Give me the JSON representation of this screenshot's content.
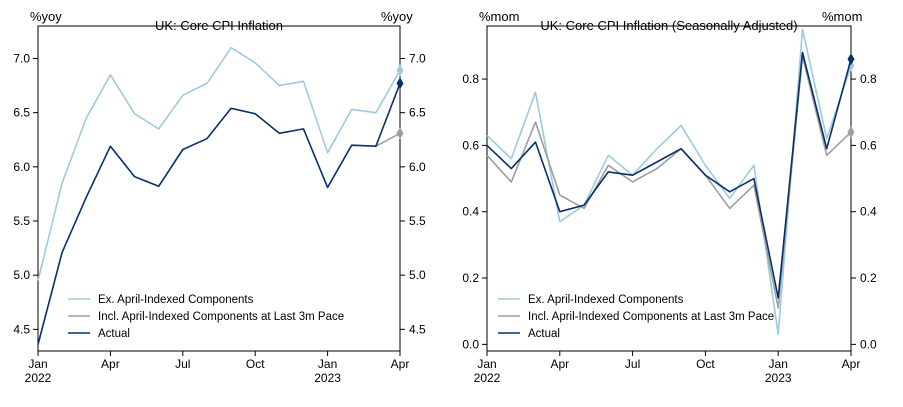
{
  "chart_data": [
    {
      "type": "line",
      "title": "UK: Core CPI Inflation",
      "ylabel_left": "%yoy",
      "ylabel_right": "%yoy",
      "ylim": [
        4.3,
        7.3
      ],
      "yticks": [
        "4.5",
        "5.0",
        "5.5",
        "6.0",
        "6.5",
        "7.0"
      ],
      "ytick_values": [
        4.5,
        5.0,
        5.5,
        6.0,
        6.5,
        7.0
      ],
      "x": [
        "2022-01",
        "2022-02",
        "2022-03",
        "2022-04",
        "2022-05",
        "2022-06",
        "2022-07",
        "2022-08",
        "2022-09",
        "2022-10",
        "2022-11",
        "2022-12",
        "2023-01",
        "2023-02",
        "2023-03",
        "2023-04"
      ],
      "xticks": [
        {
          "x": "2022-01",
          "label": "Jan",
          "year": "2022"
        },
        {
          "x": "2022-04",
          "label": "Apr",
          "year": ""
        },
        {
          "x": "2022-07",
          "label": "Jul",
          "year": ""
        },
        {
          "x": "2022-10",
          "label": "Oct",
          "year": ""
        },
        {
          "x": "2023-01",
          "label": "Jan",
          "year": "2023"
        },
        {
          "x": "2023-04",
          "label": "Apr",
          "year": ""
        }
      ],
      "grid": false,
      "legend_position": "bottom-left",
      "series": [
        {
          "name": "Ex. April-Indexed Components",
          "color": "#9ecae1",
          "values": [
            4.95,
            5.85,
            6.45,
            6.85,
            6.49,
            6.35,
            6.66,
            6.77,
            7.1,
            6.96,
            6.75,
            6.79,
            6.13,
            6.53,
            6.5,
            6.89
          ]
        },
        {
          "name": "Incl. April-Indexed Components at Last 3m Pace",
          "color": "#9e9e9e",
          "values": [
            null,
            null,
            null,
            null,
            null,
            null,
            null,
            null,
            null,
            null,
            null,
            null,
            null,
            null,
            6.19,
            6.31
          ]
        },
        {
          "name": "Actual",
          "color": "#08306b",
          "values": [
            4.36,
            5.21,
            5.72,
            6.19,
            5.91,
            5.82,
            6.16,
            6.26,
            6.54,
            6.49,
            6.31,
            6.35,
            5.81,
            6.2,
            6.19,
            6.77
          ]
        }
      ]
    },
    {
      "type": "line",
      "title": "UK: Core CPI Inflation (Seasonally Adjusted)",
      "ylabel_left": "%mom",
      "ylabel_right": "%mom",
      "ylim": [
        -0.02,
        0.96
      ],
      "yticks": [
        "0.0",
        "0.2",
        "0.4",
        "0.6",
        "0.8"
      ],
      "ytick_values": [
        0.0,
        0.2,
        0.4,
        0.6,
        0.8
      ],
      "x": [
        "2022-01",
        "2022-02",
        "2022-03",
        "2022-04",
        "2022-05",
        "2022-06",
        "2022-07",
        "2022-08",
        "2022-09",
        "2022-10",
        "2022-11",
        "2022-12",
        "2023-01",
        "2023-02",
        "2023-03",
        "2023-04"
      ],
      "xticks": [
        {
          "x": "2022-01",
          "label": "Jan",
          "year": "2022"
        },
        {
          "x": "2022-04",
          "label": "Apr",
          "year": ""
        },
        {
          "x": "2022-07",
          "label": "Jul",
          "year": ""
        },
        {
          "x": "2022-10",
          "label": "Oct",
          "year": ""
        },
        {
          "x": "2023-01",
          "label": "Jan",
          "year": "2023"
        },
        {
          "x": "2023-04",
          "label": "Apr",
          "year": ""
        }
      ],
      "grid": false,
      "legend_position": "bottom-left",
      "series": [
        {
          "name": "Ex. April-Indexed Components",
          "color": "#9ecae1",
          "values": [
            0.63,
            0.56,
            0.76,
            0.37,
            0.42,
            0.57,
            0.51,
            0.59,
            0.66,
            0.54,
            0.44,
            0.54,
            0.03,
            0.95,
            0.62,
            0.84
          ]
        },
        {
          "name": "Incl. April-Indexed Components at Last 3m Pace",
          "color": "#9e9e9e",
          "values": [
            0.57,
            0.49,
            0.67,
            0.45,
            0.41,
            0.54,
            0.49,
            0.53,
            0.59,
            0.51,
            0.41,
            0.48,
            0.11,
            0.87,
            0.57,
            0.64
          ]
        },
        {
          "name": "Actual",
          "color": "#08306b",
          "values": [
            0.6,
            0.53,
            0.61,
            0.4,
            0.42,
            0.52,
            0.51,
            0.55,
            0.59,
            0.51,
            0.46,
            0.5,
            0.14,
            0.88,
            0.59,
            0.86
          ]
        }
      ]
    }
  ]
}
